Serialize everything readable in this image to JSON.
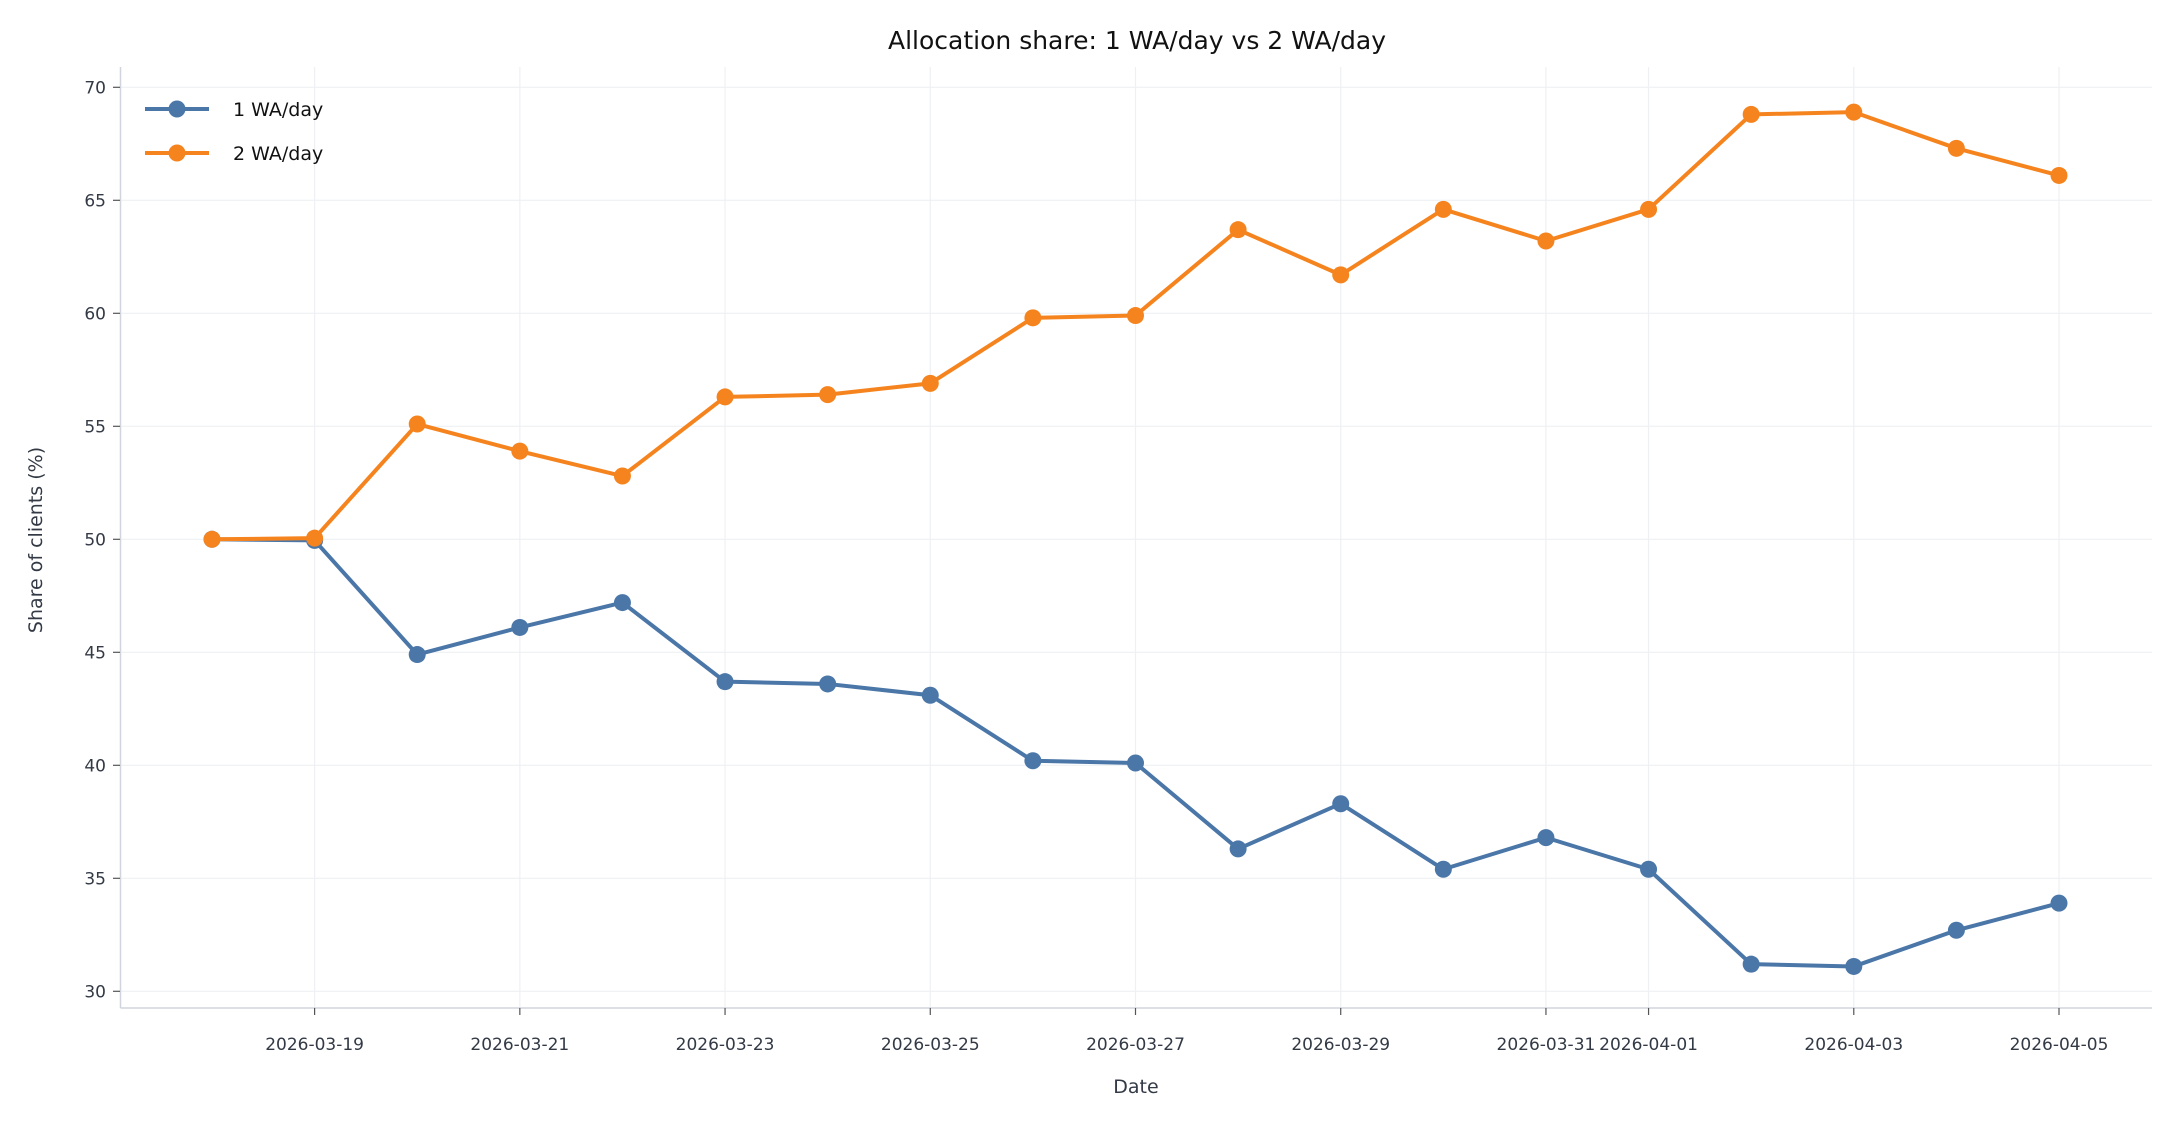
{
  "chart_data": {
    "type": "line",
    "title": "Allocation share: 1 WA/day vs 2 WA/day",
    "xlabel": "Date",
    "ylabel": "Share of clients (%)",
    "ylim": [
      29.3,
      70.8
    ],
    "yticks": [
      30,
      35,
      40,
      45,
      50,
      55,
      60,
      65,
      70
    ],
    "xticks": [
      "2026-03-19",
      "2026-03-21",
      "2026-03-23",
      "2026-03-25",
      "2026-03-27",
      "2026-03-29",
      "2026-03-31",
      "2026-04-01",
      "2026-04-03",
      "2026-04-05"
    ],
    "grid": true,
    "legend_position": "top-left",
    "x": [
      "2026-03-18",
      "2026-03-19",
      "2026-03-20",
      "2026-03-21",
      "2026-03-22",
      "2026-03-23",
      "2026-03-24",
      "2026-03-25",
      "2026-03-26",
      "2026-03-27",
      "2026-03-28",
      "2026-03-29",
      "2026-03-30",
      "2026-03-31",
      "2026-04-01",
      "2026-04-02",
      "2026-04-03",
      "2026-04-04",
      "2026-04-05"
    ],
    "series": [
      {
        "name": "1 WA/day",
        "color": "#4a76a8",
        "values": [
          50.0,
          49.95,
          44.9,
          46.1,
          47.2,
          43.7,
          43.6,
          43.1,
          40.2,
          40.1,
          36.3,
          38.3,
          35.4,
          36.8,
          35.4,
          31.2,
          31.1,
          32.7,
          33.9
        ]
      },
      {
        "name": "2 WA/day",
        "color": "#f5841f",
        "values": [
          50.0,
          50.05,
          55.1,
          53.9,
          52.8,
          56.3,
          56.4,
          56.9,
          59.8,
          59.9,
          63.7,
          61.7,
          64.6,
          63.2,
          64.6,
          68.8,
          68.9,
          67.3,
          66.1
        ]
      }
    ]
  }
}
